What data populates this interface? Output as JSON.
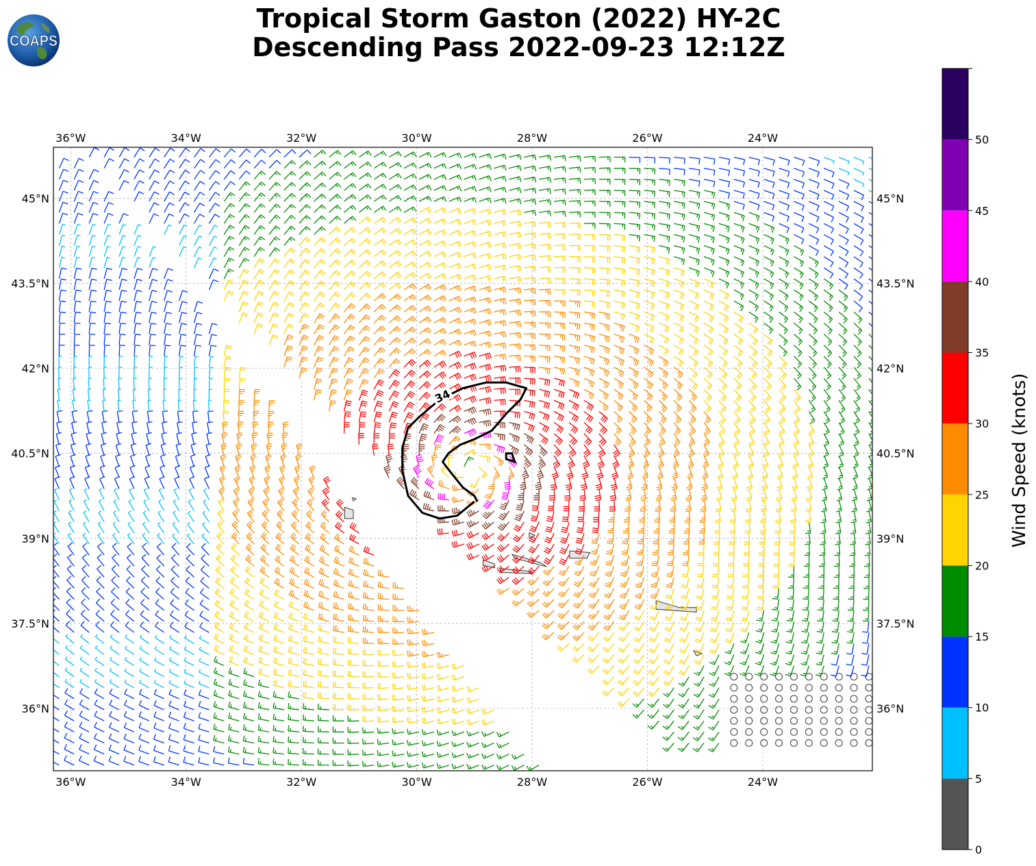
{
  "title_line1": "Tropical Storm Gaston (2022) HY-2C",
  "title_line2": "Descending Pass 2022-09-23 12:12Z",
  "logo_text": "COAPS",
  "map": {
    "lon_range": [
      -36.3,
      -22.1
    ],
    "lat_range": [
      34.9,
      45.9
    ],
    "lon_ticks": [
      {
        "value": -36,
        "label": "36°W"
      },
      {
        "value": -34,
        "label": "34°W"
      },
      {
        "value": -32,
        "label": "32°W"
      },
      {
        "value": -30,
        "label": "30°W"
      },
      {
        "value": -28,
        "label": "28°W"
      },
      {
        "value": -26,
        "label": "26°W"
      },
      {
        "value": -24,
        "label": "24°W"
      }
    ],
    "lat_ticks": [
      {
        "value": 45,
        "label": "45°N"
      },
      {
        "value": 43.5,
        "label": "43.5°N"
      },
      {
        "value": 42,
        "label": "42°N"
      },
      {
        "value": 40.5,
        "label": "40.5°N"
      },
      {
        "value": 39,
        "label": "39°N"
      },
      {
        "value": 37.5,
        "label": "37.5°N"
      },
      {
        "value": 36,
        "label": "36°N"
      }
    ],
    "storm_center": {
      "lon": -29.1,
      "lat": 40.2
    },
    "contour_label": "34",
    "contour_34kt": [
      [
        -29.0,
        39.65
      ],
      [
        -29.3,
        39.4
      ],
      [
        -29.6,
        39.35
      ],
      [
        -29.9,
        39.45
      ],
      [
        -30.15,
        39.75
      ],
      [
        -30.25,
        40.2
      ],
      [
        -30.25,
        40.6
      ],
      [
        -30.15,
        40.95
      ],
      [
        -29.95,
        41.15
      ],
      [
        -29.6,
        41.45
      ],
      [
        -29.2,
        41.65
      ],
      [
        -28.8,
        41.75
      ],
      [
        -28.45,
        41.75
      ],
      [
        -28.1,
        41.65
      ],
      [
        -28.2,
        41.45
      ],
      [
        -28.45,
        41.2
      ],
      [
        -28.7,
        40.9
      ],
      [
        -29.0,
        40.75
      ],
      [
        -29.25,
        40.65
      ],
      [
        -29.45,
        40.5
      ],
      [
        -29.55,
        40.35
      ],
      [
        -29.4,
        40.15
      ],
      [
        -29.2,
        39.9
      ],
      [
        -29.0,
        39.75
      ],
      [
        -28.95,
        39.65
      ]
    ],
    "contour_34kt_small": [
      [
        -28.45,
        40.4
      ],
      [
        -28.3,
        40.35
      ],
      [
        -28.35,
        40.5
      ],
      [
        -28.45,
        40.5
      ],
      [
        -28.45,
        40.4
      ]
    ],
    "islands": [
      {
        "name": "flores",
        "points": [
          [
            -31.25,
            39.55
          ],
          [
            -31.1,
            39.5
          ],
          [
            -31.1,
            39.35
          ],
          [
            -31.25,
            39.35
          ]
        ]
      },
      {
        "name": "corvo",
        "points": [
          [
            -31.12,
            39.72
          ],
          [
            -31.05,
            39.7
          ],
          [
            -31.1,
            39.66
          ]
        ]
      },
      {
        "name": "faial",
        "points": [
          [
            -28.85,
            38.62
          ],
          [
            -28.65,
            38.55
          ],
          [
            -28.65,
            38.48
          ],
          [
            -28.85,
            38.52
          ]
        ]
      },
      {
        "name": "pico",
        "points": [
          [
            -28.55,
            38.47
          ],
          [
            -28.05,
            38.42
          ],
          [
            -28.0,
            38.38
          ],
          [
            -28.55,
            38.4
          ]
        ]
      },
      {
        "name": "sao-jorge",
        "points": [
          [
            -28.35,
            38.72
          ],
          [
            -27.85,
            38.57
          ],
          [
            -27.75,
            38.5
          ],
          [
            -28.3,
            38.65
          ]
        ]
      },
      {
        "name": "graciosa",
        "points": [
          [
            -28.05,
            39.1
          ],
          [
            -27.95,
            39.05
          ],
          [
            -28.05,
            39.0
          ]
        ]
      },
      {
        "name": "terceira",
        "points": [
          [
            -27.35,
            38.78
          ],
          [
            -27.0,
            38.75
          ],
          [
            -27.05,
            38.65
          ],
          [
            -27.35,
            38.65
          ]
        ]
      },
      {
        "name": "sao-miguel",
        "points": [
          [
            -25.85,
            37.9
          ],
          [
            -25.45,
            37.78
          ],
          [
            -25.15,
            37.78
          ],
          [
            -25.15,
            37.7
          ],
          [
            -25.85,
            37.75
          ]
        ]
      },
      {
        "name": "santa-maria",
        "points": [
          [
            -25.2,
            37.02
          ],
          [
            -25.05,
            36.97
          ],
          [
            -25.15,
            36.93
          ]
        ]
      }
    ]
  },
  "colorbar": {
    "label": "Wind Speed (knots)",
    "ticks": [
      "0",
      "5",
      "10",
      "15",
      "20",
      "25",
      "30",
      "35",
      "40",
      "45",
      "50"
    ],
    "bins": [
      {
        "min": 0,
        "max": 5,
        "color": "#555555"
      },
      {
        "min": 5,
        "max": 10,
        "color": "#00bfff"
      },
      {
        "min": 10,
        "max": 15,
        "color": "#0033ff"
      },
      {
        "min": 15,
        "max": 20,
        "color": "#008c00"
      },
      {
        "min": 20,
        "max": 25,
        "color": "#ffd400"
      },
      {
        "min": 25,
        "max": 30,
        "color": "#ff8c00"
      },
      {
        "min": 30,
        "max": 35,
        "color": "#ff0000"
      },
      {
        "min": 35,
        "max": 40,
        "color": "#803c28"
      },
      {
        "min": 40,
        "max": 45,
        "color": "#ff00ff"
      },
      {
        "min": 45,
        "max": 50,
        "color": "#8000b4"
      },
      {
        "min": 50,
        "max": 55,
        "color": "#2a0060"
      }
    ]
  }
}
